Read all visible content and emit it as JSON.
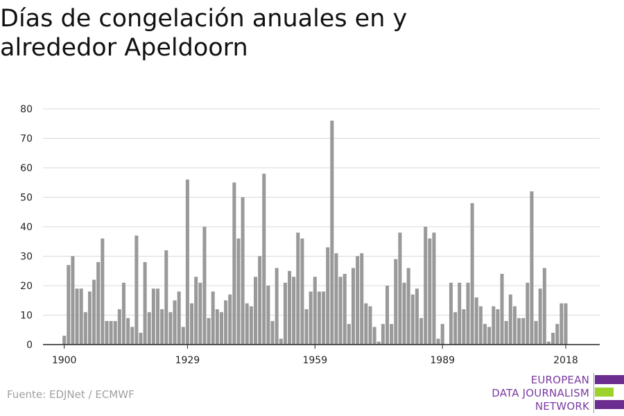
{
  "title": "Días de congelación anuales en y alrededor Apeldoorn",
  "source": "Fuente: EDJNet / ECMWF",
  "logo": {
    "lines": [
      "EUROPEAN",
      "DATA JOURNALISM",
      "NETWORK"
    ],
    "colors": [
      "#6b2d8f",
      "#9dd12b",
      "#6b2d8f"
    ]
  },
  "chart_data": {
    "type": "bar",
    "title": "Días de congelación anuales en y alrededor Apeldoorn",
    "xlabel": "",
    "ylabel": "",
    "bar_color": "#999999",
    "grid": true,
    "ylim": [
      0,
      80
    ],
    "yticks": [
      0,
      10,
      20,
      30,
      40,
      50,
      60,
      70,
      80
    ],
    "xticks": [
      1900,
      1929,
      1959,
      1989,
      2018
    ],
    "x": [
      1900,
      1901,
      1902,
      1903,
      1904,
      1905,
      1906,
      1907,
      1908,
      1909,
      1910,
      1911,
      1912,
      1913,
      1914,
      1915,
      1916,
      1917,
      1918,
      1919,
      1920,
      1921,
      1922,
      1923,
      1924,
      1925,
      1926,
      1927,
      1928,
      1929,
      1930,
      1931,
      1932,
      1933,
      1934,
      1935,
      1936,
      1937,
      1938,
      1939,
      1940,
      1941,
      1942,
      1943,
      1944,
      1945,
      1946,
      1947,
      1948,
      1949,
      1950,
      1951,
      1952,
      1953,
      1954,
      1955,
      1956,
      1957,
      1958,
      1959,
      1960,
      1961,
      1962,
      1963,
      1964,
      1965,
      1966,
      1967,
      1968,
      1969,
      1970,
      1971,
      1972,
      1973,
      1974,
      1975,
      1976,
      1977,
      1978,
      1979,
      1980,
      1981,
      1982,
      1983,
      1984,
      1985,
      1986,
      1987,
      1988,
      1989,
      1990,
      1991,
      1992,
      1993,
      1994,
      1995,
      1996,
      1997,
      1998,
      1999,
      2000,
      2001,
      2002,
      2003,
      2004,
      2005,
      2006,
      2007,
      2008,
      2009,
      2010,
      2011,
      2012,
      2013,
      2014,
      2015,
      2016,
      2017,
      2018
    ],
    "values": [
      3,
      27,
      30,
      19,
      19,
      11,
      18,
      22,
      28,
      36,
      8,
      8,
      8,
      12,
      21,
      9,
      6,
      37,
      4,
      28,
      11,
      19,
      19,
      12,
      32,
      11,
      15,
      18,
      6,
      56,
      14,
      23,
      21,
      40,
      9,
      18,
      12,
      11,
      15,
      17,
      55,
      36,
      50,
      14,
      13,
      23,
      30,
      58,
      20,
      8,
      26,
      2,
      21,
      25,
      23,
      38,
      36,
      12,
      18,
      23,
      18,
      18,
      33,
      76,
      31,
      23,
      24,
      7,
      26,
      30,
      31,
      14,
      13,
      6,
      1,
      7,
      20,
      7,
      29,
      38,
      21,
      26,
      17,
      19,
      9,
      40,
      36,
      38,
      2,
      7,
      0,
      21,
      11,
      21,
      12,
      21,
      48,
      16,
      13,
      7,
      6,
      13,
      12,
      24,
      8,
      17,
      13,
      9,
      9,
      21,
      52,
      8,
      19,
      26,
      1,
      4,
      7,
      14,
      14
    ]
  }
}
